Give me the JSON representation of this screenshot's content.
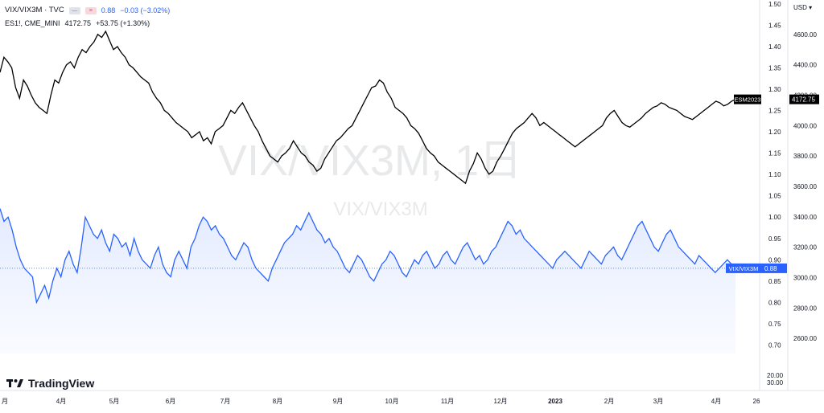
{
  "legend": {
    "title": "VIX/VIX3M · TVC",
    "value": "0.88",
    "change": "−0.03 (−3.02%)",
    "compare_title": "ES1!, CME_MINI",
    "compare_value": "4172.75",
    "compare_change": "+53.75 (+1.30%)"
  },
  "watermark": {
    "line1": "VIX/VIX3M, 1日",
    "line2": "VIX/VIX3M"
  },
  "brand": "TradingView",
  "currency": "USD",
  "colors": {
    "primary": "#2962ff",
    "compare": "#000000",
    "fill": "#eef3ff"
  },
  "chart_data": {
    "type": "line",
    "x_ticks": [
      "月",
      "4月",
      "5月",
      "6月",
      "7月",
      "8月",
      "9月",
      "10月",
      "11月",
      "12月",
      "2023",
      "2月",
      "3月",
      "4月",
      "26"
    ],
    "y_left": {
      "ticks": [
        "1.50",
        "1.45",
        "1.40",
        "1.35",
        "1.30",
        "1.25",
        "1.20",
        "1.15",
        "1.10",
        "1.05",
        "1.00",
        "0.95",
        "0.90",
        "0.85",
        "0.80",
        "0.75",
        "0.70"
      ],
      "range": [
        0.68,
        1.5
      ],
      "extra_ticks": [
        "20.00",
        "30.00"
      ]
    },
    "y_right": {
      "ticks": [
        "4600.00",
        "4400.00",
        "4200.00",
        "4000.00",
        "3800.00",
        "3600.00",
        "3400.00",
        "3200.00",
        "3000.00",
        "2800.00",
        "2600.00"
      ],
      "range": [
        2500,
        4800
      ]
    },
    "series": [
      {
        "name": "ESM2023",
        "axis": "right",
        "last_label": "4172.75",
        "values": [
          4350,
          4450,
          4420,
          4380,
          4250,
          4180,
          4300,
          4260,
          4200,
          4150,
          4120,
          4100,
          4080,
          4200,
          4300,
          4280,
          4350,
          4400,
          4420,
          4380,
          4450,
          4500,
          4480,
          4520,
          4550,
          4600,
          4580,
          4620,
          4560,
          4500,
          4520,
          4480,
          4450,
          4400,
          4380,
          4350,
          4320,
          4300,
          4280,
          4220,
          4180,
          4150,
          4100,
          4080,
          4050,
          4020,
          4000,
          3980,
          3960,
          3920,
          3940,
          3960,
          3900,
          3920,
          3880,
          3960,
          3980,
          4000,
          4050,
          4100,
          4080,
          4120,
          4150,
          4100,
          4050,
          4000,
          3960,
          3900,
          3850,
          3800,
          3780,
          3760,
          3800,
          3820,
          3850,
          3900,
          3860,
          3820,
          3800,
          3760,
          3740,
          3700,
          3720,
          3780,
          3820,
          3860,
          3900,
          3920,
          3950,
          3980,
          4000,
          4050,
          4100,
          4150,
          4200,
          4250,
          4260,
          4300,
          4280,
          4220,
          4180,
          4120,
          4100,
          4080,
          4050,
          4000,
          3980,
          3950,
          3900,
          3850,
          3820,
          3800,
          3760,
          3740,
          3720,
          3700,
          3680,
          3660,
          3640,
          3620,
          3700,
          3750,
          3820,
          3780,
          3720,
          3680,
          3700,
          3760,
          3800,
          3850,
          3900,
          3950,
          3980,
          4000,
          4020,
          4050,
          4080,
          4050,
          4000,
          4020,
          4000,
          3980,
          3960,
          3940,
          3920,
          3900,
          3880,
          3860,
          3880,
          3900,
          3920,
          3940,
          3960,
          3980,
          4000,
          4050,
          4080,
          4100,
          4060,
          4020,
          4000,
          3990,
          4010,
          4030,
          4050,
          4080,
          4100,
          4120,
          4130,
          4150,
          4140,
          4120,
          4110,
          4100,
          4080,
          4060,
          4050,
          4040,
          4060,
          4080,
          4100,
          4120,
          4140,
          4160,
          4150,
          4130,
          4140,
          4160,
          4172.75
        ]
      },
      {
        "name": "VIX/VIX3M",
        "axis": "left",
        "last_label": "0.88",
        "values": [
          1.02,
          0.99,
          1.0,
          0.97,
          0.93,
          0.9,
          0.88,
          0.87,
          0.86,
          0.8,
          0.82,
          0.84,
          0.81,
          0.85,
          0.88,
          0.86,
          0.9,
          0.92,
          0.89,
          0.87,
          0.93,
          1.0,
          0.98,
          0.96,
          0.95,
          0.97,
          0.94,
          0.92,
          0.96,
          0.95,
          0.93,
          0.94,
          0.91,
          0.95,
          0.92,
          0.9,
          0.89,
          0.88,
          0.91,
          0.93,
          0.89,
          0.87,
          0.86,
          0.9,
          0.92,
          0.9,
          0.88,
          0.93,
          0.95,
          0.98,
          1.0,
          0.99,
          0.97,
          0.98,
          0.96,
          0.95,
          0.93,
          0.91,
          0.9,
          0.92,
          0.94,
          0.93,
          0.9,
          0.88,
          0.87,
          0.86,
          0.85,
          0.88,
          0.9,
          0.92,
          0.94,
          0.95,
          0.96,
          0.98,
          0.97,
          0.99,
          1.01,
          0.99,
          0.97,
          0.96,
          0.94,
          0.95,
          0.93,
          0.92,
          0.9,
          0.88,
          0.87,
          0.89,
          0.91,
          0.9,
          0.88,
          0.86,
          0.85,
          0.87,
          0.89,
          0.9,
          0.92,
          0.91,
          0.89,
          0.87,
          0.86,
          0.88,
          0.9,
          0.89,
          0.91,
          0.92,
          0.9,
          0.88,
          0.89,
          0.91,
          0.92,
          0.9,
          0.89,
          0.91,
          0.93,
          0.94,
          0.92,
          0.9,
          0.91,
          0.89,
          0.9,
          0.92,
          0.93,
          0.95,
          0.97,
          0.99,
          0.98,
          0.96,
          0.97,
          0.95,
          0.94,
          0.93,
          0.92,
          0.91,
          0.9,
          0.89,
          0.88,
          0.9,
          0.91,
          0.92,
          0.91,
          0.9,
          0.89,
          0.88,
          0.9,
          0.92,
          0.91,
          0.9,
          0.89,
          0.91,
          0.92,
          0.93,
          0.91,
          0.9,
          0.92,
          0.94,
          0.96,
          0.98,
          0.99,
          0.97,
          0.95,
          0.93,
          0.92,
          0.94,
          0.96,
          0.97,
          0.95,
          0.93,
          0.92,
          0.91,
          0.9,
          0.89,
          0.91,
          0.9,
          0.89,
          0.88,
          0.87,
          0.88,
          0.89,
          0.9,
          0.89,
          0.88
        ]
      }
    ],
    "grid": true,
    "legend_position": "top-left"
  }
}
